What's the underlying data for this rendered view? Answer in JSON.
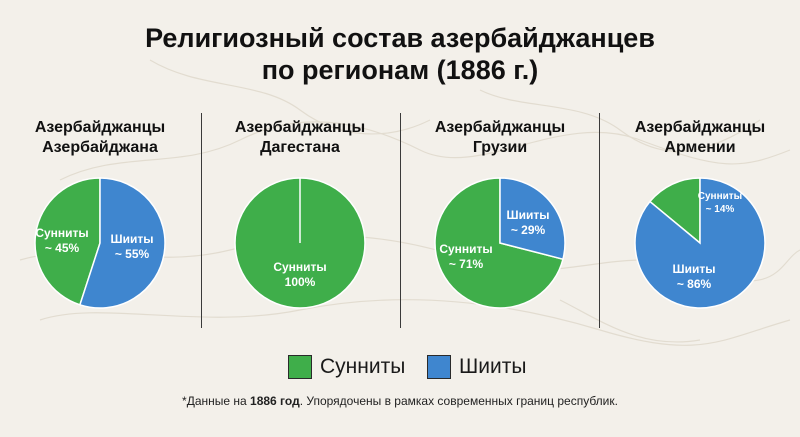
{
  "title_line1": "Религиозный состав азербайджанцев",
  "title_line2": "по регионам (1886 г.)",
  "legend": [
    {
      "label": "Сунниты",
      "color": "#3fae4a"
    },
    {
      "label": "Шииты",
      "color": "#3f86cf"
    }
  ],
  "footnote": {
    "prefix": "*Данные на ",
    "bold": "1886 год",
    "suffix": ". Упорядочены в рамках современных границ республик."
  },
  "colors": {
    "sunni": "#3fae4a",
    "shia": "#3f86cf"
  },
  "chart_data": [
    {
      "type": "pie",
      "title": [
        "Азербайджанцы",
        "Азербайджана"
      ],
      "slices": [
        {
          "name": "Сунниты",
          "value": 45,
          "label": "Сунниты",
          "pct": "~ 45%"
        },
        {
          "name": "Шииты",
          "value": 55,
          "label": "Шииты",
          "pct": "~ 55%"
        }
      ]
    },
    {
      "type": "pie",
      "title": [
        "Азербайджанцы",
        "Дагестана"
      ],
      "slices": [
        {
          "name": "Сунниты",
          "value": 100,
          "label": "Сунниты",
          "pct": "100%"
        },
        {
          "name": "Шииты",
          "value": 0,
          "label": "",
          "pct": ""
        }
      ]
    },
    {
      "type": "pie",
      "title": [
        "Азербайджанцы",
        "Грузии"
      ],
      "slices": [
        {
          "name": "Сунниты",
          "value": 71,
          "label": "Сунниты",
          "pct": "~ 71%"
        },
        {
          "name": "Шииты",
          "value": 29,
          "label": "Шииты",
          "pct": "~ 29%"
        }
      ]
    },
    {
      "type": "pie",
      "title": [
        "Азербайджанцы",
        "Армении"
      ],
      "slices": [
        {
          "name": "Сунниты",
          "value": 14,
          "label": "Сунниты",
          "pct": "~ 14%"
        },
        {
          "name": "Шииты",
          "value": 86,
          "label": "Шииты",
          "pct": "~ 86%"
        }
      ]
    }
  ]
}
